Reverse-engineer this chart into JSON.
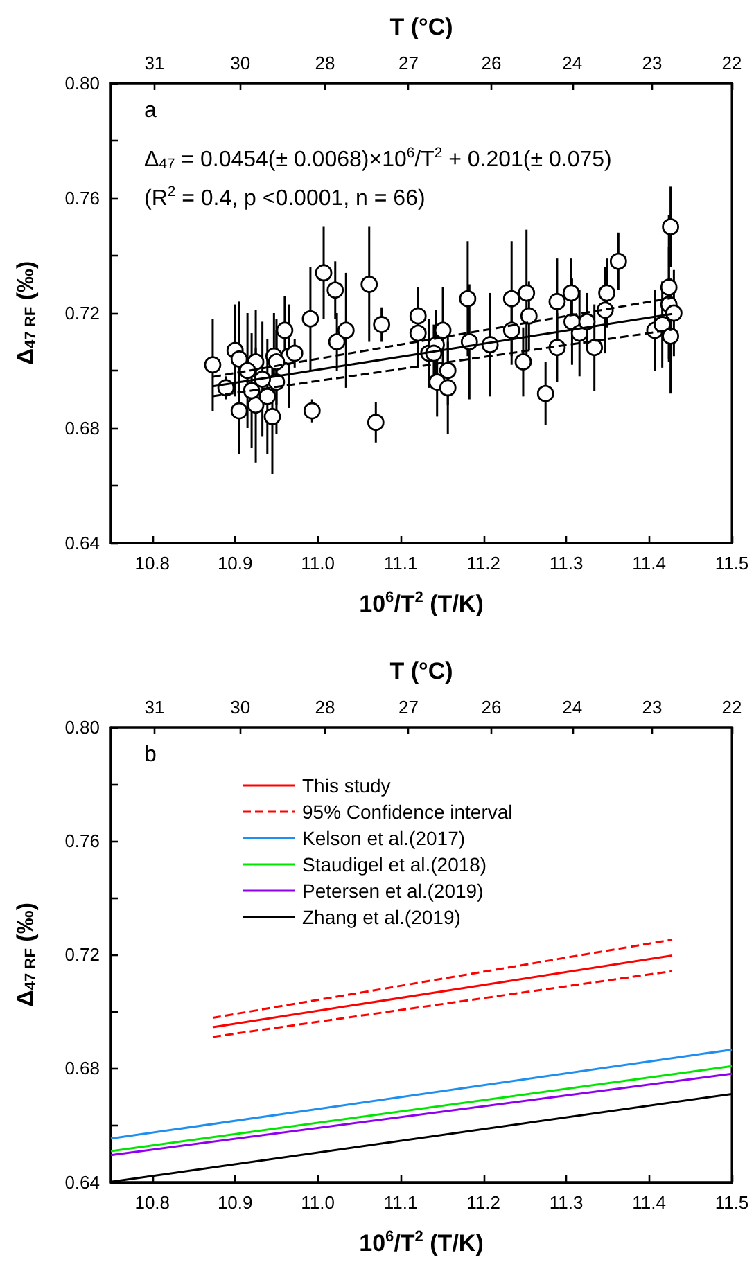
{
  "chart_data": [
    {
      "type": "scatter",
      "xlabel": "10$^{6}$/T$^{2}$ (T/K)",
      "ylabel": "Δ$_{47 RF}$ (‰)",
      "x2label": "T (°C)",
      "xlim": [
        10.75,
        11.5
      ],
      "xticks": [
        10.8,
        10.9,
        {
          "value": 11,
          "label": "11.0"
        },
        11.1,
        11.2,
        11.3,
        11.4,
        11.5
      ],
      "x2lim": [
        31.85,
        21.73
      ],
      "x2ticks": [
        {
          "value": 31.14,
          "label": "31"
        },
        {
          "value": 29.74,
          "label": "30"
        },
        {
          "value": 28.36,
          "label": "28"
        },
        {
          "value": 27.0,
          "label": "27"
        },
        {
          "value": 25.65,
          "label": "26"
        },
        {
          "value": 24.33,
          "label": "24"
        },
        {
          "value": 23.03,
          "label": "23"
        },
        {
          "value": 21.73,
          "label": "22"
        }
      ],
      "ylim": [
        0.64,
        0.8
      ],
      "yticks": [
        0.64,
        {
          "value": 0.66,
          "label": null
        },
        0.68,
        {
          "value": 0.7,
          "label": null
        },
        0.72,
        {
          "value": 0.74,
          "label": null
        },
        0.76,
        {
          "value": 0.78,
          "label": null
        },
        {
          "value": 0.8,
          "label": "0.80"
        }
      ],
      "grid": false,
      "annotations": [
        "a",
        "Δ$_{47}$ = 0.0454(± 0.0068)×10$^{6}$/T$^{2}$ + 0.201(± 0.075)",
        "(R$^{2}$ = 0.4, p <0.0001, n = 66)"
      ],
      "series": [
        {
          "type": "scatter",
          "marker": "circle",
          "color": "#000000",
          "x": [
            10.873,
            10.889,
            10.9,
            10.905,
            10.905,
            10.925,
            10.925,
            10.947,
            10.945,
            10.95,
            10.96,
            10.965,
            10.972,
            10.991,
            10.993,
            11.007,
            11.021,
            11.023,
            11.034,
            11.062,
            11.07,
            11.077,
            11.121,
            11.121,
            11.134,
            11.151,
            11.143,
            11.14,
            11.157,
            11.144,
            11.157,
            11.181,
            11.183,
            11.208,
            11.234,
            11.234,
            11.252,
            11.255,
            11.248,
            11.275,
            11.289,
            11.289,
            11.306,
            11.307,
            11.316,
            11.325,
            11.334,
            11.347,
            11.349,
            11.363,
            11.407,
            11.416,
            11.424,
            11.424,
            11.426,
            11.426,
            11.43,
            10.915,
            10.933,
            10.939,
            10.92,
            10.95
          ],
          "values": [
            0.702,
            0.694,
            0.707,
            0.704,
            0.686,
            0.703,
            0.688,
            0.705,
            0.684,
            0.696,
            0.714,
            0.705,
            0.706,
            0.718,
            0.686,
            0.734,
            0.728,
            0.71,
            0.714,
            0.73,
            0.682,
            0.716,
            0.719,
            0.713,
            0.706,
            0.714,
            0.709,
            0.706,
            0.7,
            0.696,
            0.694,
            0.725,
            0.71,
            0.709,
            0.725,
            0.714,
            0.727,
            0.719,
            0.703,
            0.692,
            0.724,
            0.708,
            0.727,
            0.717,
            0.713,
            0.717,
            0.708,
            0.721,
            0.727,
            0.738,
            0.714,
            0.716,
            0.729,
            0.723,
            0.75,
            0.712,
            0.72,
            0.7,
            0.697,
            0.691,
            0.693,
            0.703
          ],
          "errors": [
            0.016,
            0.004,
            0.016,
            0.02,
            0.015,
            0.018,
            0.02,
            0.015,
            0.02,
            0.018,
            0.012,
            0.018,
            0.005,
            0.018,
            0.004,
            0.016,
            0.01,
            0.01,
            0.02,
            0.02,
            0.007,
            0.006,
            0.01,
            0.012,
            0.012,
            0.015,
            0.012,
            0.01,
            0.012,
            0.012,
            0.016,
            0.02,
            0.02,
            0.018,
            0.02,
            0.012,
            0.022,
            0.012,
            0.012,
            0.011,
            0.015,
            0.012,
            0.012,
            0.015,
            0.015,
            0.01,
            0.015,
            0.015,
            0.012,
            0.01,
            0.014,
            0.015,
            0.025,
            0.02,
            0.014,
            0.02,
            0.015,
            0.02,
            0.02,
            0.02,
            0.02,
            0.015
          ]
        },
        {
          "type": "line",
          "color": "#000000",
          "x": [
            10.873,
            11.428
          ],
          "values": [
            0.6945,
            0.7197
          ]
        },
        {
          "type": "line",
          "color": "#000000",
          "line_style": "dashed",
          "x": [
            10.873,
            11.428
          ],
          "values": [
            0.6978,
            0.7253
          ]
        },
        {
          "type": "line",
          "color": "#000000",
          "line_style": "dashed",
          "x": [
            10.873,
            11.428
          ],
          "values": [
            0.6911,
            0.7142
          ]
        }
      ]
    },
    {
      "type": "line",
      "xlabel": "10$^{6}$/T$^{2}$ (T/K)",
      "ylabel": "Δ$_{47 RF}$ (‰)",
      "x2label": "T (°C)",
      "xlim": [
        10.75,
        11.5
      ],
      "xticks": [
        10.8,
        10.9,
        {
          "value": 11,
          "label": "11.0"
        },
        11.1,
        11.2,
        11.3,
        11.4,
        11.5
      ],
      "x2lim": [
        31.85,
        21.73
      ],
      "x2ticks": [
        {
          "value": 31.14,
          "label": "31"
        },
        {
          "value": 29.74,
          "label": "30"
        },
        {
          "value": 28.36,
          "label": "28"
        },
        {
          "value": 27.0,
          "label": "27"
        },
        {
          "value": 25.65,
          "label": "26"
        },
        {
          "value": 24.33,
          "label": "24"
        },
        {
          "value": 23.03,
          "label": "23"
        },
        {
          "value": 21.73,
          "label": "22"
        }
      ],
      "ylim": [
        0.64,
        0.8
      ],
      "yticks": [
        0.64,
        {
          "value": 0.66,
          "label": null
        },
        0.68,
        {
          "value": 0.7,
          "label": null
        },
        0.72,
        {
          "value": 0.74,
          "label": null
        },
        0.76,
        {
          "value": 0.78,
          "label": null
        },
        {
          "value": 0.8,
          "label": "0.80"
        }
      ],
      "grid": false,
      "legend": "top",
      "annotations": [
        "b"
      ],
      "series": [
        {
          "name": "This study",
          "color": "#ff0000",
          "x": [
            10.873,
            11.428
          ],
          "values": [
            0.6945,
            0.7197
          ]
        },
        {
          "name": "95% Confidence interval",
          "color": "#ff0000",
          "line_style": "dashed",
          "x": [
            10.873,
            11.428
          ],
          "values": [
            0.6978,
            0.7253
          ]
        },
        {
          "color": "#ff0000",
          "line_style": "dashed",
          "x": [
            10.873,
            11.428
          ],
          "values": [
            0.6911,
            0.7142
          ]
        },
        {
          "name": "Kelson et al.(2017)",
          "color": "#1e8ff0",
          "x": [
            10.75,
            11.5
          ],
          "values": [
            0.6553,
            0.6866
          ]
        },
        {
          "name": "Staudigel et al.(2018)",
          "color": "#00e600",
          "x": [
            10.75,
            11.5
          ],
          "values": [
            0.6509,
            0.6808
          ]
        },
        {
          "name": "Petersen et al.(2019)",
          "color": "#9000f0",
          "x": [
            10.75,
            11.5
          ],
          "values": [
            0.6495,
            0.6781
          ]
        },
        {
          "name": "Zhang et al.(2019)",
          "color": "#000000",
          "x": [
            10.75,
            11.5
          ],
          "values": [
            0.6401,
            0.671
          ]
        }
      ]
    }
  ]
}
